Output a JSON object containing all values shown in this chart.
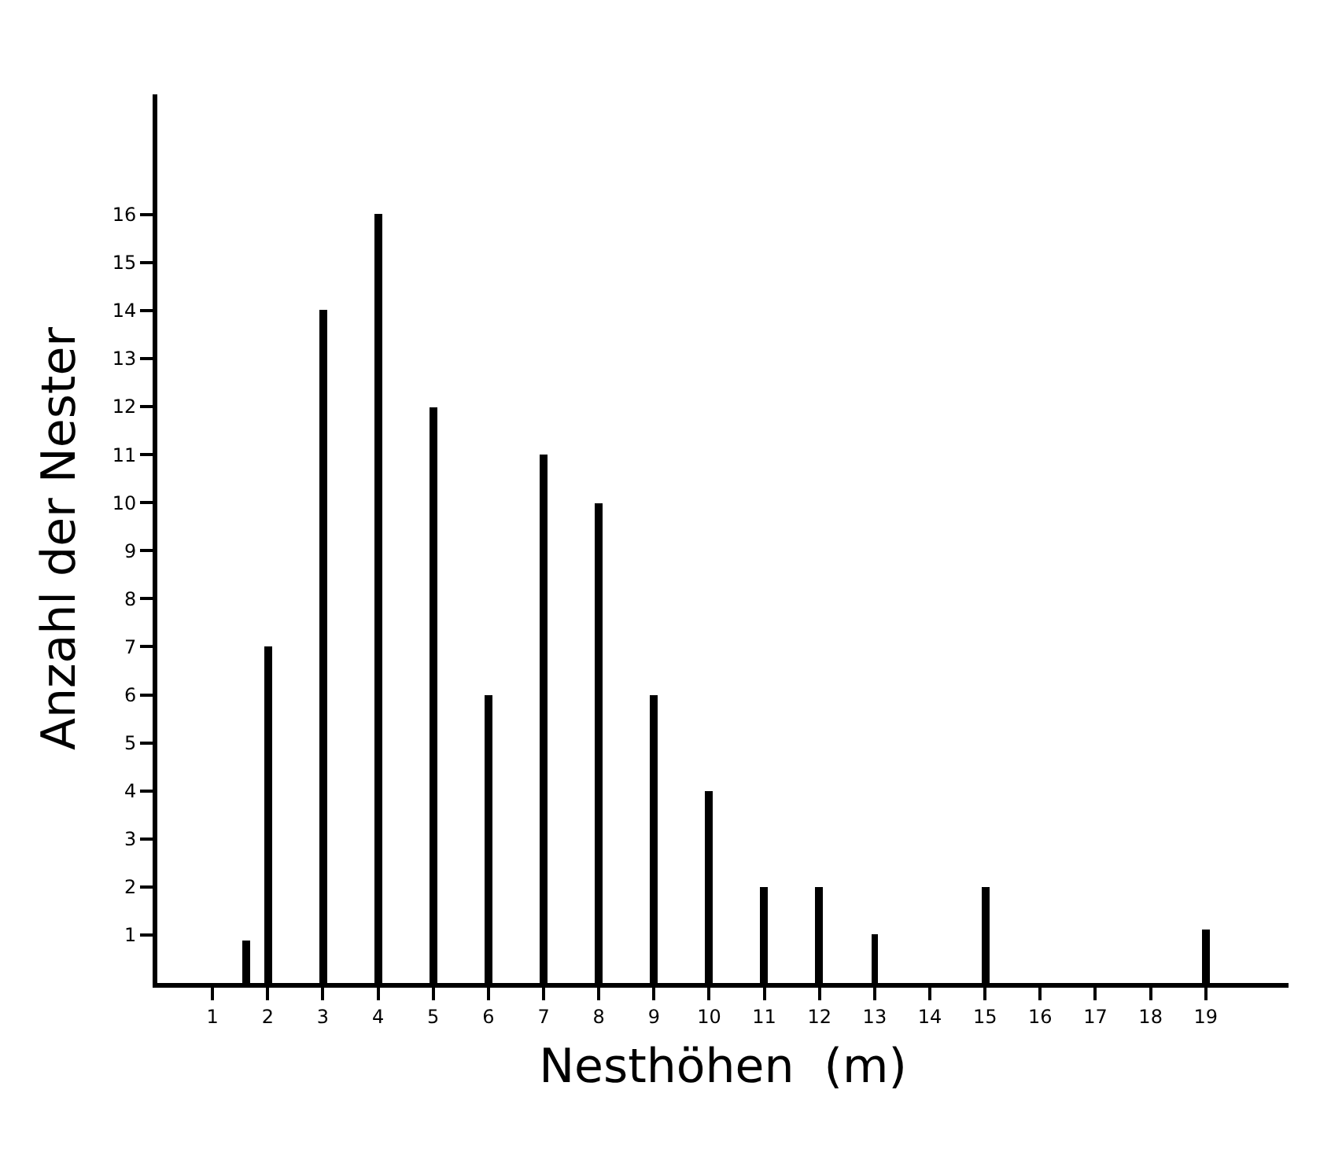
{
  "chart_data": {
    "type": "bar",
    "xlabel": "Nesthöhen  (m)",
    "ylabel": "Anzahl der Nester",
    "x": [
      1.6,
      2,
      3,
      4,
      5,
      6,
      7,
      8,
      9,
      10,
      11,
      12,
      13,
      15,
      19
    ],
    "values": [
      0.9,
      7,
      14,
      16,
      12,
      6,
      11,
      10,
      6,
      4,
      2,
      2,
      1,
      2,
      1.1
    ],
    "color": "#000000",
    "xlim": [
      0,
      20.5
    ],
    "xticks": [
      1,
      2,
      3,
      4,
      5,
      6,
      7,
      8,
      9,
      10,
      11,
      12,
      13,
      14,
      15,
      16,
      17,
      18,
      19
    ],
    "ylim": [
      0,
      18.5
    ],
    "yticks": [
      1,
      2,
      3,
      4,
      5,
      6,
      7,
      8,
      9,
      10,
      11,
      12,
      13,
      14,
      15,
      16
    ]
  }
}
